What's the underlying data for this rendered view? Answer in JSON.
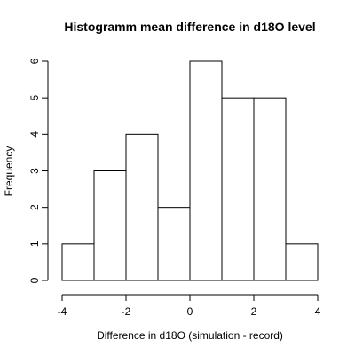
{
  "chart_data": {
    "type": "bar",
    "title": "Histogramm mean difference in d18O level",
    "xlabel": "Difference in d18O (simulation - record)",
    "ylabel": "Frequency",
    "bins": [
      {
        "from": -4,
        "to": -3,
        "count": 1
      },
      {
        "from": -3,
        "to": -2,
        "count": 3
      },
      {
        "from": -2,
        "to": -1,
        "count": 4
      },
      {
        "from": -1,
        "to": 0,
        "count": 2
      },
      {
        "from": 0,
        "to": 1,
        "count": 6
      },
      {
        "from": 1,
        "to": 2,
        "count": 5
      },
      {
        "from": 2,
        "to": 3,
        "count": 5
      },
      {
        "from": 3,
        "to": 4,
        "count": 1
      }
    ],
    "xlim": [
      -4,
      4
    ],
    "ylim": [
      0,
      6
    ],
    "xticks": [
      "-4",
      "-2",
      "0",
      "2",
      "4"
    ],
    "yticks": [
      "0",
      "1",
      "2",
      "3",
      "4",
      "5",
      "6"
    ],
    "bar_fill": "#ffffff",
    "bar_stroke": "#000000",
    "grid": false
  }
}
